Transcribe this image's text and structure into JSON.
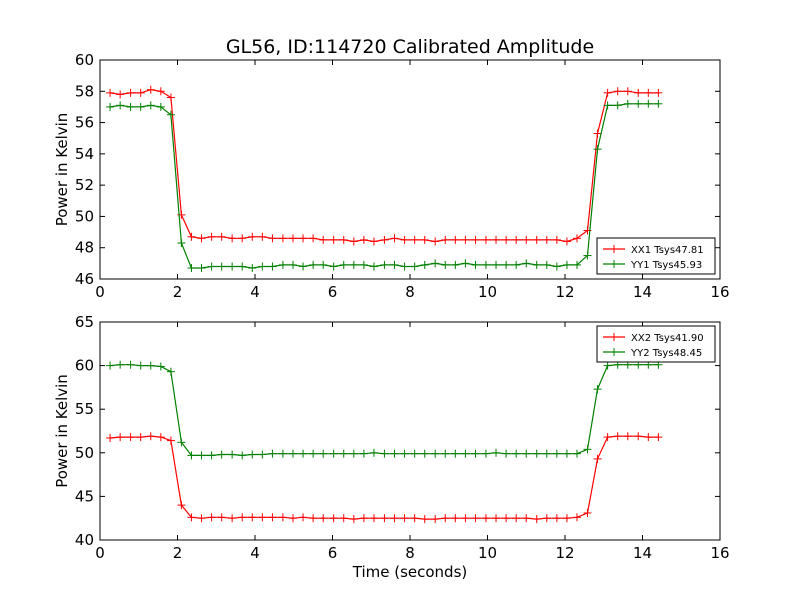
{
  "figure": {
    "title": "GL56, ID:114720 Calibrated Amplitude"
  },
  "chart_data": [
    {
      "type": "line",
      "title": "GL56, ID:114720 Calibrated Amplitude",
      "xlabel": "",
      "ylabel": "Power in Kelvin",
      "xlim": [
        0,
        16
      ],
      "ylim": [
        46,
        60
      ],
      "xticks": [
        0,
        2,
        4,
        6,
        8,
        10,
        12,
        14,
        16
      ],
      "yticks": [
        46,
        48,
        50,
        52,
        54,
        56,
        58,
        60
      ],
      "grid": false,
      "legend_position": "lower-right",
      "x": [
        0.26,
        0.52,
        0.79,
        1.05,
        1.31,
        1.57,
        1.83,
        2.1,
        2.36,
        2.62,
        2.88,
        3.14,
        3.41,
        3.67,
        3.93,
        4.19,
        4.45,
        4.72,
        4.98,
        5.24,
        5.5,
        5.76,
        6.03,
        6.29,
        6.55,
        6.81,
        7.07,
        7.34,
        7.6,
        7.86,
        8.12,
        8.38,
        8.65,
        8.91,
        9.17,
        9.43,
        9.69,
        9.96,
        10.22,
        10.48,
        10.74,
        11.0,
        11.27,
        11.53,
        11.79,
        12.05,
        12.31,
        12.58,
        12.84,
        13.1,
        13.36,
        13.62,
        13.89,
        14.15,
        14.41
      ],
      "series": [
        {
          "name": "XX1 Tsys47.81",
          "color": "#ff0000",
          "values": [
            57.9,
            57.8,
            57.9,
            57.9,
            58.1,
            58.0,
            57.6,
            50.1,
            48.7,
            48.6,
            48.7,
            48.7,
            48.6,
            48.6,
            48.7,
            48.7,
            48.6,
            48.6,
            48.6,
            48.6,
            48.6,
            48.5,
            48.5,
            48.5,
            48.4,
            48.5,
            48.4,
            48.5,
            48.6,
            48.5,
            48.5,
            48.5,
            48.4,
            48.5,
            48.5,
            48.5,
            48.5,
            48.5,
            48.5,
            48.5,
            48.5,
            48.5,
            48.5,
            48.5,
            48.5,
            48.4,
            48.6,
            49.1,
            55.3,
            57.9,
            58.0,
            58.0,
            57.9,
            57.9,
            57.9
          ]
        },
        {
          "name": "YY1 Tsys45.93",
          "color": "#008000",
          "values": [
            57.0,
            57.1,
            57.0,
            57.0,
            57.1,
            57.0,
            56.5,
            48.3,
            46.7,
            46.7,
            46.8,
            46.8,
            46.8,
            46.8,
            46.7,
            46.8,
            46.8,
            46.9,
            46.9,
            46.8,
            46.9,
            46.9,
            46.8,
            46.9,
            46.9,
            46.9,
            46.8,
            46.9,
            46.9,
            46.8,
            46.8,
            46.9,
            47.0,
            46.9,
            46.9,
            47.0,
            46.9,
            46.9,
            46.9,
            46.9,
            46.9,
            47.0,
            46.9,
            46.9,
            46.8,
            46.9,
            46.9,
            47.5,
            54.3,
            57.1,
            57.1,
            57.2,
            57.2,
            57.2,
            57.2
          ]
        }
      ]
    },
    {
      "type": "line",
      "title": "",
      "xlabel": "Time (seconds)",
      "ylabel": "Power in Kelvin",
      "xlim": [
        0,
        16
      ],
      "ylim": [
        40,
        65
      ],
      "xticks": [
        0,
        2,
        4,
        6,
        8,
        10,
        12,
        14,
        16
      ],
      "yticks": [
        40,
        45,
        50,
        55,
        60,
        65
      ],
      "grid": false,
      "legend_position": "upper-right",
      "x": [
        0.26,
        0.52,
        0.79,
        1.05,
        1.31,
        1.57,
        1.83,
        2.1,
        2.36,
        2.62,
        2.88,
        3.14,
        3.41,
        3.67,
        3.93,
        4.19,
        4.45,
        4.72,
        4.98,
        5.24,
        5.5,
        5.76,
        6.03,
        6.29,
        6.55,
        6.81,
        7.07,
        7.34,
        7.6,
        7.86,
        8.12,
        8.38,
        8.65,
        8.91,
        9.17,
        9.43,
        9.69,
        9.96,
        10.22,
        10.48,
        10.74,
        11.0,
        11.27,
        11.53,
        11.79,
        12.05,
        12.31,
        12.58,
        12.84,
        13.1,
        13.36,
        13.62,
        13.89,
        14.15,
        14.41
      ],
      "series": [
        {
          "name": "XX2 Tsys41.90",
          "color": "#ff0000",
          "values": [
            51.7,
            51.8,
            51.8,
            51.8,
            51.9,
            51.8,
            51.4,
            44.0,
            42.6,
            42.5,
            42.6,
            42.6,
            42.5,
            42.6,
            42.6,
            42.6,
            42.6,
            42.6,
            42.5,
            42.6,
            42.5,
            42.5,
            42.5,
            42.5,
            42.4,
            42.5,
            42.5,
            42.5,
            42.5,
            42.5,
            42.5,
            42.4,
            42.4,
            42.5,
            42.5,
            42.5,
            42.5,
            42.5,
            42.5,
            42.5,
            42.5,
            42.5,
            42.4,
            42.5,
            42.5,
            42.5,
            42.6,
            43.1,
            49.3,
            51.8,
            51.9,
            51.9,
            51.9,
            51.8,
            51.8
          ]
        },
        {
          "name": "YY2 Tsys48.45",
          "color": "#008000",
          "values": [
            60.0,
            60.1,
            60.1,
            60.0,
            60.0,
            59.9,
            59.3,
            51.2,
            49.7,
            49.7,
            49.7,
            49.8,
            49.8,
            49.7,
            49.8,
            49.8,
            49.9,
            49.9,
            49.9,
            49.9,
            49.9,
            49.9,
            49.9,
            49.9,
            49.9,
            49.9,
            50.0,
            49.9,
            49.9,
            49.9,
            49.9,
            49.9,
            49.9,
            49.9,
            49.9,
            49.9,
            49.9,
            49.9,
            50.0,
            49.9,
            49.9,
            49.9,
            49.9,
            49.9,
            49.9,
            49.9,
            49.9,
            50.4,
            57.3,
            60.0,
            60.1,
            60.1,
            60.1,
            60.1,
            60.1
          ]
        }
      ]
    }
  ]
}
